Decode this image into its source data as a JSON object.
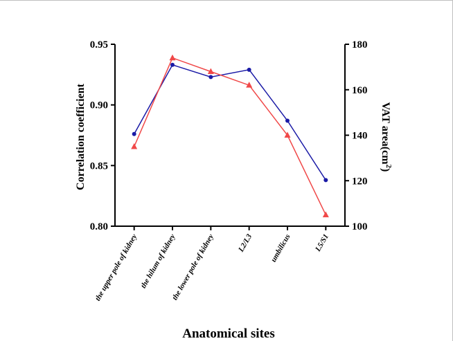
{
  "chart_data": {
    "type": "line",
    "title": "",
    "xlabel": "Anatomical sites",
    "ylabel_left": "Correlation coefficient",
    "ylabel_right_main": "VAT area(cm",
    "ylabel_right_sup": "2",
    "ylabel_right_close": ")",
    "categories": [
      "the upper pole of kidney",
      "the hilum of kidney",
      "the lower pole of kidney",
      "L2/L3",
      "umbilicus",
      "L5/S1"
    ],
    "y_left": {
      "lim": [
        0.8,
        0.95
      ],
      "ticks": [
        0.8,
        0.85,
        0.9,
        0.95
      ],
      "tick_labels": [
        "0.80",
        "0.85",
        "0.90",
        "0.95"
      ]
    },
    "y_right": {
      "lim": [
        100,
        180
      ],
      "ticks": [
        100,
        120,
        140,
        160,
        180
      ],
      "tick_labels": [
        "100",
        "120",
        "140",
        "160",
        "180"
      ]
    },
    "series": [
      {
        "axis": "left",
        "color": "#1a1aa6",
        "marker": "circle",
        "values": [
          0.876,
          0.933,
          0.923,
          0.929,
          0.887,
          0.838
        ]
      },
      {
        "axis": "right",
        "color": "#f04848",
        "marker": "triangle",
        "values": [
          135,
          174,
          168,
          162,
          140,
          105
        ]
      }
    ],
    "legend": "none",
    "grid": false
  }
}
